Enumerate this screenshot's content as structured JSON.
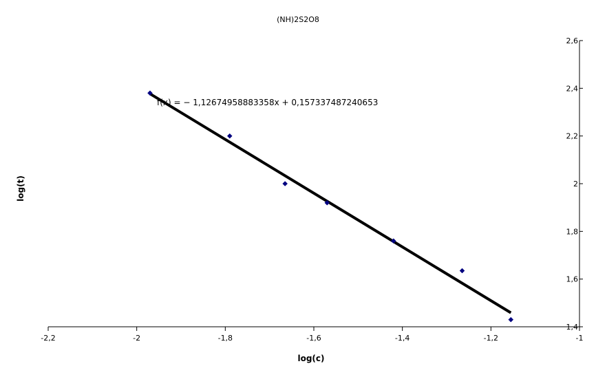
{
  "chart_data": {
    "type": "scatter",
    "title": "(NH)2S2O8",
    "xlabel": "log(c)",
    "ylabel": "log(t)",
    "xlim": [
      -2.2,
      -1
    ],
    "ylim": [
      1.4,
      2.6
    ],
    "x_ticks": [
      "-2,2",
      "-2",
      "-1,8",
      "-1,6",
      "-1,4",
      "-1,2",
      "-1"
    ],
    "y_ticks": [
      "2,6",
      "2,4",
      "2,2",
      "2",
      "1,8",
      "1,6",
      "1,4"
    ],
    "y_axis_position": "right",
    "grid": false,
    "legend": "none",
    "marker_color": "#000080",
    "series": [
      {
        "points": [
          {
            "x": -1.97,
            "y": 2.38
          },
          {
            "x": -1.79,
            "y": 2.2
          },
          {
            "x": -1.665,
            "y": 2.0
          },
          {
            "x": -1.57,
            "y": 1.92
          },
          {
            "x": -1.42,
            "y": 1.76
          },
          {
            "x": -1.265,
            "y": 1.635
          },
          {
            "x": -1.155,
            "y": 1.43
          }
        ]
      }
    ],
    "trendline": {
      "slope": -1.12674958883358,
      "intercept": 0.157337487240653,
      "x_start": -1.97,
      "x_end": -1.155,
      "color": "#000000",
      "equation_text": "f(x) = − 1,12674958883358x + 0,157337487240653"
    }
  }
}
